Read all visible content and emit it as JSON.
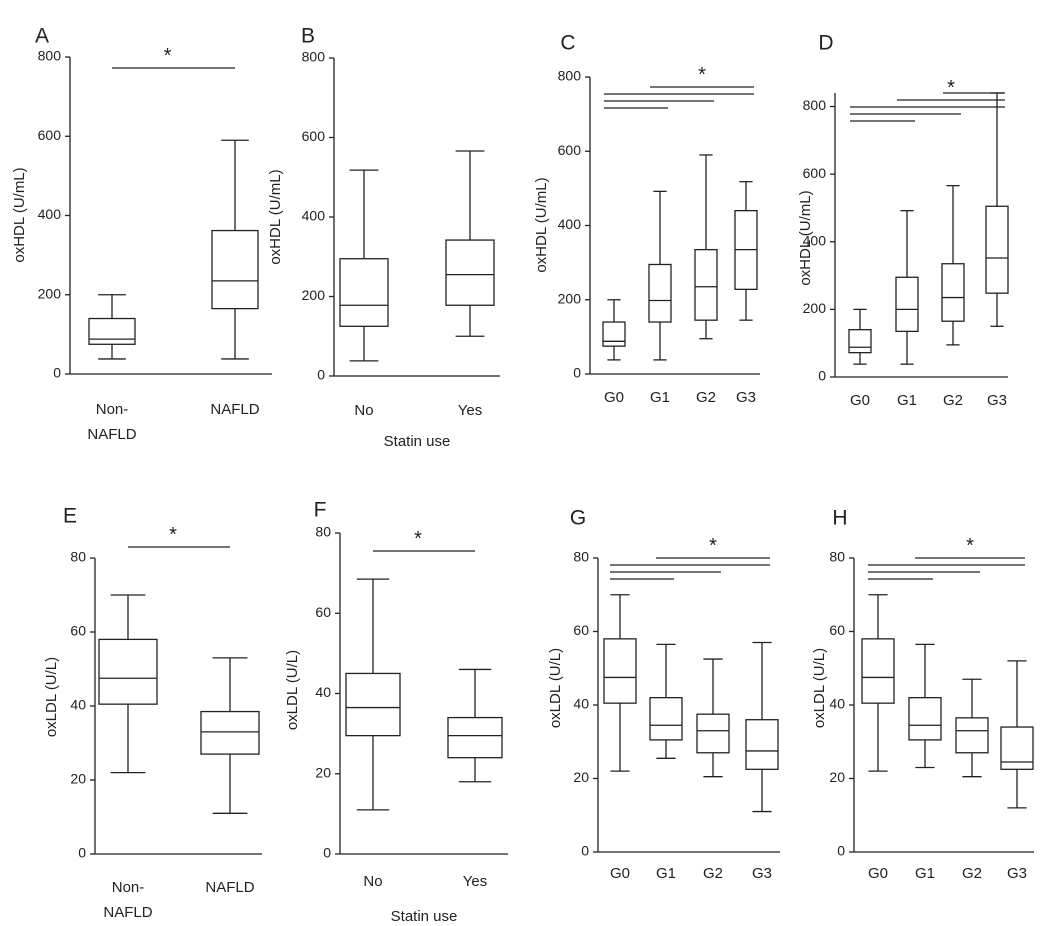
{
  "figure": {
    "colors": {
      "stroke": "#222222",
      "box_fill": "#ffffff",
      "text": "#222222"
    }
  },
  "chart_data": [
    {
      "id": "A",
      "panel_label": "A",
      "type": "box",
      "ylabel": "oxHDL (U/mL)",
      "xlabel": "",
      "ylim": [
        0,
        800
      ],
      "yticks": [
        0,
        200,
        400,
        600,
        800
      ],
      "categories": [
        [
          "Non-",
          "NAFLD"
        ],
        [
          "NAFLD"
        ]
      ],
      "boxes": [
        {
          "min": 38,
          "q1": 75,
          "median": 88,
          "q3": 140,
          "max": 200
        },
        {
          "min": 38,
          "q1": 165,
          "median": 235,
          "q3": 362,
          "max": 590
        }
      ],
      "significance": [
        {
          "from": 0,
          "to": 1,
          "label": "*"
        }
      ]
    },
    {
      "id": "B",
      "panel_label": "B",
      "type": "box",
      "ylabel": "oxHDL (U/mL)",
      "xlabel": "Statin use",
      "ylim": [
        0,
        800
      ],
      "yticks": [
        0,
        200,
        400,
        600,
        800
      ],
      "categories": [
        [
          "No"
        ],
        [
          "Yes"
        ]
      ],
      "boxes": [
        {
          "min": 38,
          "q1": 125,
          "median": 178,
          "q3": 295,
          "max": 518
        },
        {
          "min": 100,
          "q1": 178,
          "median": 255,
          "q3": 342,
          "max": 566
        }
      ],
      "significance": []
    },
    {
      "id": "C",
      "panel_label": "C",
      "type": "box",
      "ylabel": "oxHDL (U/mL)",
      "xlabel": "",
      "ylim": [
        0,
        800
      ],
      "yticks": [
        0,
        200,
        400,
        600,
        800
      ],
      "categories": [
        [
          "G0"
        ],
        [
          "G1"
        ],
        [
          "G2"
        ],
        [
          "G3"
        ]
      ],
      "boxes": [
        {
          "min": 38,
          "q1": 75,
          "median": 88,
          "q3": 140,
          "max": 200
        },
        {
          "min": 38,
          "q1": 140,
          "median": 198,
          "q3": 295,
          "max": 492
        },
        {
          "min": 95,
          "q1": 145,
          "median": 235,
          "q3": 335,
          "max": 590
        },
        {
          "min": 145,
          "q1": 228,
          "median": 335,
          "q3": 440,
          "max": 518
        }
      ],
      "significance": [
        {
          "from": 0,
          "to": 1,
          "label": ""
        },
        {
          "from": 0,
          "to": 2,
          "label": ""
        },
        {
          "from": 0,
          "to": 3,
          "label": ""
        },
        {
          "from": 1,
          "to": 3,
          "label": "*"
        }
      ]
    },
    {
      "id": "D",
      "panel_label": "D",
      "type": "box",
      "ylabel": "oxHDL (U/mL)",
      "xlabel": "",
      "ylim": [
        0,
        840
      ],
      "yticks": [
        0,
        200,
        400,
        600,
        800
      ],
      "categories": [
        [
          "G0"
        ],
        [
          "G1"
        ],
        [
          "G2"
        ],
        [
          "G3"
        ]
      ],
      "boxes": [
        {
          "min": 38,
          "q1": 72,
          "median": 88,
          "q3": 140,
          "max": 200
        },
        {
          "min": 38,
          "q1": 135,
          "median": 200,
          "q3": 295,
          "max": 492
        },
        {
          "min": 95,
          "q1": 165,
          "median": 235,
          "q3": 335,
          "max": 566
        },
        {
          "min": 150,
          "q1": 248,
          "median": 352,
          "q3": 505,
          "max": 840
        }
      ],
      "significance": [
        {
          "from": 0,
          "to": 1,
          "label": ""
        },
        {
          "from": 0,
          "to": 2,
          "label": ""
        },
        {
          "from": 0,
          "to": 3,
          "label": ""
        },
        {
          "from": 1,
          "to": 3,
          "label": "*"
        },
        {
          "from": 2,
          "to": 3,
          "label": ""
        }
      ]
    },
    {
      "id": "E",
      "panel_label": "E",
      "type": "box",
      "ylabel": "oxLDL (U/L)",
      "xlabel": "",
      "ylim": [
        0,
        80
      ],
      "yticks": [
        0,
        20,
        40,
        60,
        80
      ],
      "categories": [
        [
          "Non-",
          "NAFLD"
        ],
        [
          "NAFLD"
        ]
      ],
      "boxes": [
        {
          "min": 22,
          "q1": 40.5,
          "median": 47.5,
          "q3": 58,
          "max": 70
        },
        {
          "min": 11,
          "q1": 27,
          "median": 33,
          "q3": 38.5,
          "max": 53
        }
      ],
      "significance": [
        {
          "from": 0,
          "to": 1,
          "label": "*"
        }
      ]
    },
    {
      "id": "F",
      "panel_label": "F",
      "type": "box",
      "ylabel": "oxLDL (U/L)",
      "xlabel": "Statin use",
      "ylim": [
        0,
        80
      ],
      "yticks": [
        0,
        20,
        40,
        60,
        80
      ],
      "categories": [
        [
          "No"
        ],
        [
          "Yes"
        ]
      ],
      "boxes": [
        {
          "min": 11,
          "q1": 29.5,
          "median": 36.5,
          "q3": 45,
          "max": 68.5
        },
        {
          "min": 18,
          "q1": 24,
          "median": 29.5,
          "q3": 34,
          "max": 46
        }
      ],
      "significance": [
        {
          "from": 0,
          "to": 1,
          "label": "*"
        }
      ]
    },
    {
      "id": "G",
      "panel_label": "G",
      "type": "box",
      "ylabel": "oxLDL (U/L)",
      "xlabel": "",
      "ylim": [
        0,
        80
      ],
      "yticks": [
        0,
        20,
        40,
        60,
        80
      ],
      "categories": [
        [
          "G0"
        ],
        [
          "G1"
        ],
        [
          "G2"
        ],
        [
          "G3"
        ]
      ],
      "boxes": [
        {
          "min": 22,
          "q1": 40.5,
          "median": 47.5,
          "q3": 58,
          "max": 70
        },
        {
          "min": 25.5,
          "q1": 30.5,
          "median": 34.5,
          "q3": 42,
          "max": 56.5
        },
        {
          "min": 20.5,
          "q1": 27,
          "median": 33,
          "q3": 37.5,
          "max": 52.5
        },
        {
          "min": 11,
          "q1": 22.5,
          "median": 27.5,
          "q3": 36,
          "max": 57
        }
      ],
      "significance": [
        {
          "from": 0,
          "to": 1,
          "label": ""
        },
        {
          "from": 0,
          "to": 2,
          "label": ""
        },
        {
          "from": 0,
          "to": 3,
          "label": ""
        },
        {
          "from": 1,
          "to": 3,
          "label": "*"
        }
      ]
    },
    {
      "id": "H",
      "panel_label": "H",
      "type": "box",
      "ylabel": "oxLDL (U/L)",
      "xlabel": "",
      "ylim": [
        0,
        80
      ],
      "yticks": [
        0,
        20,
        40,
        60,
        80
      ],
      "categories": [
        [
          "G0"
        ],
        [
          "G1"
        ],
        [
          "G2"
        ],
        [
          "G3"
        ]
      ],
      "boxes": [
        {
          "min": 22,
          "q1": 40.5,
          "median": 47.5,
          "q3": 58,
          "max": 70
        },
        {
          "min": 23,
          "q1": 30.5,
          "median": 34.5,
          "q3": 42,
          "max": 56.5
        },
        {
          "min": 20.5,
          "q1": 27,
          "median": 33,
          "q3": 36.5,
          "max": 47
        },
        {
          "min": 12,
          "q1": 22.5,
          "median": 24.5,
          "q3": 34,
          "max": 52
        }
      ],
      "significance": [
        {
          "from": 0,
          "to": 1,
          "label": ""
        },
        {
          "from": 0,
          "to": 2,
          "label": ""
        },
        {
          "from": 0,
          "to": 3,
          "label": ""
        },
        {
          "from": 1,
          "to": 3,
          "label": "*"
        }
      ]
    }
  ]
}
